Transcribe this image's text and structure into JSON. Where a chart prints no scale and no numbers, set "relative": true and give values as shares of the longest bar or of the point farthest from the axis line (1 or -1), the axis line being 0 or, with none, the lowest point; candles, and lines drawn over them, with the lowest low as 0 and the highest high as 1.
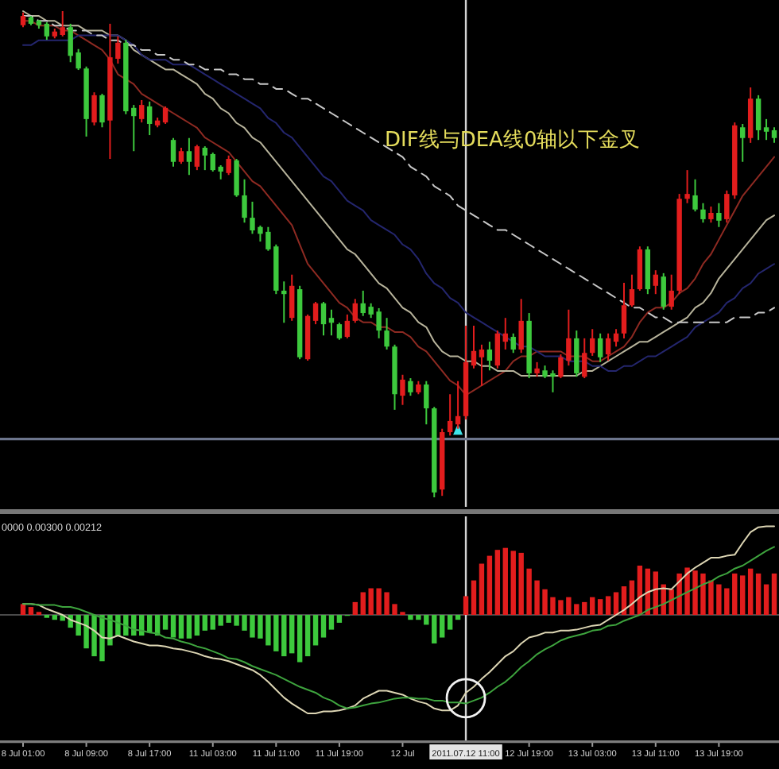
{
  "chart_data": [
    {
      "type": "candlestick",
      "relative": true,
      "tick_labels": false,
      "categories": [
        "8 Jul 01:00",
        null,
        null,
        null,
        null,
        null,
        null,
        null,
        "8 Jul 09:00",
        null,
        null,
        null,
        null,
        null,
        null,
        null,
        "8 Jul 17:00",
        null,
        null,
        null,
        null,
        null,
        null,
        null,
        "11 Jul 03:00",
        null,
        null,
        null,
        null,
        null,
        null,
        null,
        "11 Jul 11:00",
        null,
        null,
        null,
        null,
        null,
        null,
        null,
        "11 Jul 19:00",
        null,
        null,
        null,
        null,
        null,
        null,
        null,
        "12 Jul",
        null,
        null,
        null,
        null,
        null,
        null,
        null,
        "2011.07.12 11:00",
        null,
        null,
        null,
        null,
        null,
        null,
        null,
        "12 Jul 19:00",
        null,
        null,
        null,
        null,
        null,
        null,
        null,
        "13 Jul 03:00",
        null,
        null,
        null,
        null,
        null,
        null,
        null,
        "13 Jul 11:00",
        null,
        null,
        null,
        null,
        null,
        null,
        null,
        "13 Jul 19:00",
        null,
        null,
        null,
        null,
        null,
        null,
        null
      ],
      "ohlc": [
        [
          0.971,
          0.997,
          0.967,
          0.99
        ],
        [
          0.987,
          0.99,
          0.971,
          0.974
        ],
        [
          0.98,
          0.982,
          0.964,
          0.971
        ],
        [
          0.974,
          0.977,
          0.941,
          0.948
        ],
        [
          0.948,
          0.964,
          0.944,
          0.958
        ],
        [
          0.951,
          1.0,
          0.948,
          0.967
        ],
        [
          0.967,
          0.974,
          0.895,
          0.908
        ],
        [
          0.915,
          0.922,
          0.879,
          0.882
        ],
        [
          0.882,
          0.886,
          0.742,
          0.778
        ],
        [
          0.771,
          0.833,
          0.765,
          0.827
        ],
        [
          0.827,
          0.83,
          0.761,
          0.771
        ],
        [
          0.775,
          0.974,
          0.696,
          0.905
        ],
        [
          0.902,
          0.948,
          0.892,
          0.935
        ],
        [
          0.935,
          0.941,
          0.788,
          0.794
        ],
        [
          0.801,
          0.807,
          0.712,
          0.784
        ],
        [
          0.778,
          0.817,
          0.771,
          0.807
        ],
        [
          0.804,
          0.814,
          0.745,
          0.768
        ],
        [
          0.765,
          0.781,
          0.761,
          0.775
        ],
        [
          0.771,
          0.804,
          0.768,
          0.801
        ],
        [
          0.735,
          0.739,
          0.68,
          0.69
        ],
        [
          0.69,
          0.719,
          0.686,
          0.712
        ],
        [
          0.712,
          0.739,
          0.663,
          0.69
        ],
        [
          0.68,
          0.725,
          0.673,
          0.722
        ],
        [
          0.719,
          0.722,
          0.673,
          0.703
        ],
        [
          0.706,
          0.709,
          0.67,
          0.673
        ],
        [
          0.68,
          0.683,
          0.654,
          0.67
        ],
        [
          0.667,
          0.703,
          0.663,
          0.696
        ],
        [
          0.693,
          0.696,
          0.618,
          0.621
        ],
        [
          0.621,
          0.654,
          0.565,
          0.575
        ],
        [
          0.575,
          0.608,
          0.542,
          0.549
        ],
        [
          0.556,
          0.559,
          0.526,
          0.542
        ],
        [
          0.546,
          0.556,
          0.507,
          0.51
        ],
        [
          0.516,
          0.52,
          0.418,
          0.425
        ],
        [
          0.425,
          0.444,
          0.359,
          0.418
        ],
        [
          0.369,
          0.458,
          0.363,
          0.435
        ],
        [
          0.428,
          0.435,
          0.284,
          0.288
        ],
        [
          0.284,
          0.376,
          0.281,
          0.373
        ],
        [
          0.363,
          0.402,
          0.356,
          0.399
        ],
        [
          0.399,
          0.402,
          0.333,
          0.356
        ],
        [
          0.369,
          0.386,
          0.333,
          0.359
        ],
        [
          0.356,
          0.359,
          0.324,
          0.327
        ],
        [
          0.33,
          0.376,
          0.327,
          0.363
        ],
        [
          0.363,
          0.408,
          0.359,
          0.399
        ],
        [
          0.399,
          0.425,
          0.373,
          0.379
        ],
        [
          0.392,
          0.399,
          0.369,
          0.376
        ],
        [
          0.382,
          0.389,
          0.327,
          0.343
        ],
        [
          0.343,
          0.369,
          0.304,
          0.31
        ],
        [
          0.31,
          0.314,
          0.18,
          0.212
        ],
        [
          0.209,
          0.252,
          0.19,
          0.242
        ],
        [
          0.239,
          0.245,
          0.209,
          0.216
        ],
        [
          0.216,
          0.239,
          0.212,
          0.232
        ],
        [
          0.232,
          0.239,
          0.15,
          0.183
        ],
        [
          0.183,
          0.186,
          0.0,
          0.01
        ],
        [
          0.016,
          0.141,
          0.003,
          0.134
        ],
        [
          0.134,
          0.212,
          0.127,
          0.157
        ],
        [
          0.15,
          0.239,
          0.141,
          0.167
        ],
        [
          0.167,
          0.353,
          0.16,
          0.278
        ],
        [
          0.271,
          0.353,
          0.265,
          0.301
        ],
        [
          0.288,
          0.314,
          0.229,
          0.304
        ],
        [
          0.304,
          0.32,
          0.261,
          0.281
        ],
        [
          0.271,
          0.343,
          0.265,
          0.337
        ],
        [
          0.32,
          0.369,
          0.304,
          0.337
        ],
        [
          0.33,
          0.337,
          0.297,
          0.304
        ],
        [
          0.304,
          0.408,
          0.297,
          0.363
        ],
        [
          0.363,
          0.379,
          0.245,
          0.255
        ],
        [
          0.255,
          0.278,
          0.248,
          0.265
        ],
        [
          0.261,
          0.271,
          0.245,
          0.248
        ],
        [
          0.255,
          0.261,
          0.216,
          0.248
        ],
        [
          0.248,
          0.294,
          0.245,
          0.288
        ],
        [
          0.281,
          0.386,
          0.271,
          0.327
        ],
        [
          0.327,
          0.343,
          0.248,
          0.255
        ],
        [
          0.248,
          0.327,
          0.245,
          0.297
        ],
        [
          0.297,
          0.346,
          0.291,
          0.327
        ],
        [
          0.327,
          0.337,
          0.278,
          0.288
        ],
        [
          0.294,
          0.337,
          0.281,
          0.327
        ],
        [
          0.32,
          0.346,
          0.31,
          0.337
        ],
        [
          0.337,
          0.441,
          0.327,
          0.395
        ],
        [
          0.395,
          0.458,
          0.392,
          0.428
        ],
        [
          0.428,
          0.516,
          0.425,
          0.51
        ],
        [
          0.51,
          0.516,
          0.418,
          0.428
        ],
        [
          0.435,
          0.467,
          0.418,
          0.458
        ],
        [
          0.454,
          0.461,
          0.386,
          0.392
        ],
        [
          0.392,
          0.458,
          0.386,
          0.425
        ],
        [
          0.425,
          0.624,
          0.418,
          0.614
        ],
        [
          0.614,
          0.673,
          0.605,
          0.624
        ],
        [
          0.621,
          0.654,
          0.588,
          0.592
        ],
        [
          0.592,
          0.605,
          0.565,
          0.572
        ],
        [
          0.572,
          0.598,
          0.565,
          0.585
        ],
        [
          0.585,
          0.605,
          0.556,
          0.569
        ],
        [
          0.572,
          0.631,
          0.565,
          0.624
        ],
        [
          0.621,
          0.771,
          0.614,
          0.765
        ],
        [
          0.761,
          0.768,
          0.69,
          0.739
        ],
        [
          0.739,
          0.843,
          0.729,
          0.82
        ],
        [
          0.82,
          0.827,
          0.735,
          0.755
        ],
        [
          0.761,
          0.778,
          0.735,
          0.752
        ],
        [
          0.755,
          0.761,
          0.729,
          0.739
        ]
      ],
      "colors": [
        "#e21d1d",
        "#3dc93d",
        "#3dc93d",
        "#3dc93d",
        "#e21d1d",
        "#e21d1d",
        "#3dc93d",
        "#3dc93d",
        "#3dc93d",
        "#e21d1d",
        "#3dc93d",
        "#e21d1d",
        "#e21d1d",
        "#3dc93d",
        "#3dc93d",
        "#e21d1d",
        "#3dc93d",
        "#e21d1d",
        "#e21d1d",
        "#3dc93d",
        "#e21d1d",
        "#3dc93d",
        "#e21d1d",
        "#3dc93d",
        "#3dc93d",
        "#3dc93d",
        "#e21d1d",
        "#3dc93d",
        "#3dc93d",
        "#3dc93d",
        "#3dc93d",
        "#3dc93d",
        "#3dc93d",
        "#3dc93d",
        "#e21d1d",
        "#3dc93d",
        "#e21d1d",
        "#e21d1d",
        "#3dc93d",
        "#3dc93d",
        "#3dc93d",
        "#e21d1d",
        "#e21d1d",
        "#3dc93d",
        "#3dc93d",
        "#3dc93d",
        "#3dc93d",
        "#3dc93d",
        "#e21d1d",
        "#3dc93d",
        "#e21d1d",
        "#3dc93d",
        "#3dc93d",
        "#e21d1d",
        "#e21d1d",
        "#e21d1d",
        "#e21d1d",
        "#e21d1d",
        "#e21d1d",
        "#3dc93d",
        "#e21d1d",
        "#e21d1d",
        "#3dc93d",
        "#e21d1d",
        "#3dc93d",
        "#e21d1d",
        "#3dc93d",
        "#3dc93d",
        "#e21d1d",
        "#e21d1d",
        "#3dc93d",
        "#e21d1d",
        "#e21d1d",
        "#3dc93d",
        "#e21d1d",
        "#e21d1d",
        "#e21d1d",
        "#e21d1d",
        "#e21d1d",
        "#3dc93d",
        "#e21d1d",
        "#3dc93d",
        "#e21d1d",
        "#e21d1d",
        "#e21d1d",
        "#3dc93d",
        "#3dc93d",
        "#e21d1d",
        "#3dc93d",
        "#e21d1d",
        "#e21d1d",
        "#3dc93d",
        "#e21d1d",
        "#3dc93d",
        "#3dc93d",
        "#3dc93d"
      ],
      "series": [
        {
          "type": "line",
          "color": "#8e2a22",
          "values": [
            0.98,
            0.98,
            0.97,
            0.97,
            0.97,
            0.96,
            0.96,
            0.95,
            0.94,
            0.93,
            0.92,
            0.9,
            0.87,
            0.86,
            0.85,
            0.83,
            0.82,
            0.81,
            0.8,
            0.79,
            0.78,
            0.77,
            0.76,
            0.74,
            0.73,
            0.72,
            0.71,
            0.69,
            0.67,
            0.65,
            0.64,
            0.62,
            0.6,
            0.58,
            0.56,
            0.52,
            0.48,
            0.46,
            0.44,
            0.42,
            0.4,
            0.39,
            0.37,
            0.36,
            0.36,
            0.35,
            0.35,
            0.34,
            0.34,
            0.33,
            0.31,
            0.3,
            0.28,
            0.26,
            0.24,
            0.23,
            0.21,
            0.22,
            0.23,
            0.24,
            0.25,
            0.26,
            0.28,
            0.29,
            0.29,
            0.3,
            0.3,
            0.3,
            0.3,
            0.29,
            0.29,
            0.29,
            0.28,
            0.28,
            0.29,
            0.3,
            0.31,
            0.33,
            0.36,
            0.38,
            0.39,
            0.39,
            0.4,
            0.42,
            0.43,
            0.45,
            0.48,
            0.5,
            0.53,
            0.56,
            0.59,
            0.62,
            0.64,
            0.66,
            0.68,
            0.7
          ]
        },
        {
          "type": "line",
          "color": "#b8b49c",
          "values": [
            1.0,
            0.99,
            0.99,
            0.98,
            0.98,
            0.97,
            0.97,
            0.97,
            0.96,
            0.96,
            0.96,
            0.95,
            0.95,
            0.94,
            0.92,
            0.91,
            0.9,
            0.89,
            0.88,
            0.88,
            0.87,
            0.86,
            0.85,
            0.83,
            0.82,
            0.8,
            0.79,
            0.77,
            0.76,
            0.74,
            0.73,
            0.71,
            0.69,
            0.67,
            0.65,
            0.63,
            0.61,
            0.59,
            0.57,
            0.55,
            0.53,
            0.51,
            0.5,
            0.48,
            0.46,
            0.44,
            0.43,
            0.41,
            0.39,
            0.38,
            0.36,
            0.35,
            0.32,
            0.3,
            0.29,
            0.29,
            0.28,
            0.28,
            0.27,
            0.27,
            0.26,
            0.26,
            0.26,
            0.25,
            0.25,
            0.25,
            0.25,
            0.25,
            0.25,
            0.25,
            0.25,
            0.26,
            0.26,
            0.27,
            0.28,
            0.29,
            0.3,
            0.31,
            0.32,
            0.32,
            0.33,
            0.34,
            0.35,
            0.36,
            0.37,
            0.39,
            0.4,
            0.42,
            0.45,
            0.47,
            0.49,
            0.51,
            0.53,
            0.55,
            0.57,
            0.58
          ]
        },
        {
          "type": "line",
          "color": "#24266e",
          "values": [
            0.93,
            0.93,
            0.94,
            0.94,
            0.94,
            0.94,
            0.94,
            0.95,
            0.95,
            0.95,
            0.95,
            0.95,
            0.95,
            0.94,
            0.93,
            0.91,
            0.9,
            0.9,
            0.9,
            0.89,
            0.89,
            0.89,
            0.88,
            0.87,
            0.86,
            0.85,
            0.84,
            0.83,
            0.82,
            0.81,
            0.8,
            0.78,
            0.77,
            0.75,
            0.74,
            0.72,
            0.7,
            0.68,
            0.66,
            0.65,
            0.63,
            0.61,
            0.6,
            0.59,
            0.57,
            0.56,
            0.55,
            0.54,
            0.52,
            0.51,
            0.49,
            0.46,
            0.44,
            0.43,
            0.41,
            0.4,
            0.38,
            0.37,
            0.36,
            0.35,
            0.34,
            0.33,
            0.32,
            0.31,
            0.31,
            0.3,
            0.29,
            0.29,
            0.29,
            0.28,
            0.28,
            0.28,
            0.27,
            0.27,
            0.26,
            0.26,
            0.27,
            0.27,
            0.28,
            0.29,
            0.29,
            0.3,
            0.31,
            0.32,
            0.33,
            0.35,
            0.36,
            0.37,
            0.38,
            0.4,
            0.41,
            0.43,
            0.44,
            0.46,
            0.47,
            0.48
          ]
        },
        {
          "type": "line",
          "color": "#c8c8c8",
          "line_style": "dashed",
          "values": [
            0.99,
            0.99,
            0.98,
            0.98,
            0.97,
            0.97,
            0.96,
            0.96,
            0.96,
            0.95,
            0.95,
            0.94,
            0.94,
            0.93,
            0.93,
            0.92,
            0.92,
            0.91,
            0.91,
            0.9,
            0.9,
            0.89,
            0.89,
            0.88,
            0.88,
            0.88,
            0.87,
            0.87,
            0.86,
            0.86,
            0.85,
            0.85,
            0.84,
            0.84,
            0.83,
            0.82,
            0.82,
            0.81,
            0.8,
            0.79,
            0.78,
            0.77,
            0.76,
            0.75,
            0.74,
            0.73,
            0.72,
            0.71,
            0.7,
            0.68,
            0.67,
            0.66,
            0.64,
            0.63,
            0.62,
            0.6,
            0.59,
            0.58,
            0.57,
            0.56,
            0.55,
            0.55,
            0.54,
            0.53,
            0.52,
            0.51,
            0.5,
            0.49,
            0.48,
            0.47,
            0.46,
            0.45,
            0.44,
            0.43,
            0.42,
            0.41,
            0.4,
            0.39,
            0.39,
            0.38,
            0.37,
            0.37,
            0.36,
            0.36,
            0.36,
            0.36,
            0.36,
            0.36,
            0.36,
            0.36,
            0.37,
            0.37,
            0.37,
            0.38,
            0.38,
            0.39
          ]
        },
        {
          "type": "scatter",
          "color": "#3fe3e8",
          "marker": "triangle",
          "values": [
            null,
            null,
            null,
            null,
            null,
            null,
            null,
            null,
            null,
            null,
            null,
            null,
            null,
            null,
            null,
            null,
            null,
            null,
            null,
            null,
            null,
            null,
            null,
            null,
            null,
            null,
            null,
            null,
            null,
            null,
            null,
            null,
            null,
            null,
            null,
            null,
            null,
            null,
            null,
            null,
            null,
            null,
            null,
            null,
            null,
            null,
            null,
            null,
            null,
            null,
            null,
            null,
            null,
            null,
            null,
            0.14,
            null,
            null,
            null,
            null,
            null,
            null,
            null,
            null,
            null,
            null,
            null,
            null,
            null,
            null,
            null,
            null,
            null,
            null,
            null,
            null,
            null,
            null,
            null,
            null,
            null,
            null,
            null,
            null,
            null,
            null,
            null,
            null,
            null,
            null,
            null,
            null,
            null,
            null,
            null,
            null
          ]
        }
      ],
      "ref_lines": [
        {
          "axis": "x",
          "value": "2011.07.12 11:00",
          "color": "#d4d4d4"
        },
        {
          "axis": "y",
          "value": 0.12,
          "color": "#6c758c"
        }
      ],
      "annotations": [
        "DIF线与DEA线0轴以下金叉"
      ]
    },
    {
      "type": "bar",
      "relative": true,
      "tick_labels": "x",
      "categories": [
        "8 Jul 01:00",
        null,
        null,
        null,
        null,
        null,
        null,
        null,
        "8 Jul 09:00",
        null,
        null,
        null,
        null,
        null,
        null,
        null,
        "8 Jul 17:00",
        null,
        null,
        null,
        null,
        null,
        null,
        null,
        "11 Jul 03:00",
        null,
        null,
        null,
        null,
        null,
        null,
        null,
        "11 Jul 11:00",
        null,
        null,
        null,
        null,
        null,
        null,
        null,
        "11 Jul 19:00",
        null,
        null,
        null,
        null,
        null,
        null,
        null,
        "12 Jul",
        null,
        null,
        null,
        null,
        null,
        null,
        null,
        "2011.07.12 11:00",
        null,
        null,
        null,
        null,
        null,
        null,
        null,
        "12 Jul 19:00",
        null,
        null,
        null,
        null,
        null,
        null,
        null,
        "13 Jul 03:00",
        null,
        null,
        null,
        null,
        null,
        null,
        null,
        "13 Jul 11:00",
        null,
        null,
        null,
        null,
        null,
        null,
        null,
        "13 Jul 19:00",
        null,
        null,
        null,
        null,
        null,
        null,
        null
      ],
      "series": [
        {
          "type": "bar",
          "values": [
            0.11,
            0.08,
            0.03,
            -0.03,
            -0.05,
            -0.06,
            -0.13,
            -0.21,
            -0.34,
            -0.42,
            -0.47,
            -0.31,
            -0.21,
            -0.21,
            -0.21,
            -0.21,
            -0.18,
            -0.21,
            -0.15,
            -0.23,
            -0.24,
            -0.24,
            -0.21,
            -0.16,
            -0.15,
            -0.11,
            -0.08,
            -0.11,
            -0.16,
            -0.23,
            -0.24,
            -0.31,
            -0.37,
            -0.42,
            -0.39,
            -0.48,
            -0.42,
            -0.31,
            -0.23,
            -0.15,
            -0.08,
            -0.01,
            0.13,
            0.23,
            0.27,
            0.27,
            0.23,
            0.11,
            0.03,
            -0.05,
            -0.05,
            -0.1,
            -0.29,
            -0.23,
            -0.15,
            -0.05,
            0.19,
            0.35,
            0.52,
            0.6,
            0.66,
            0.68,
            0.65,
            0.63,
            0.47,
            0.35,
            0.26,
            0.18,
            0.15,
            0.18,
            0.11,
            0.13,
            0.18,
            0.16,
            0.19,
            0.23,
            0.29,
            0.35,
            0.5,
            0.47,
            0.44,
            0.31,
            0.26,
            0.42,
            0.48,
            0.45,
            0.42,
            0.35,
            0.31,
            0.27,
            0.42,
            0.4,
            0.47,
            0.42,
            0.31,
            0.42
          ],
          "colors": [
            "#e21d1d",
            "#e21d1d",
            "#e21d1d",
            "#3dc93d",
            "#3dc93d",
            "#3dc93d",
            "#3dc93d",
            "#3dc93d",
            "#3dc93d",
            "#3dc93d",
            "#3dc93d",
            "#3dc93d",
            "#3dc93d",
            "#3dc93d",
            "#3dc93d",
            "#3dc93d",
            "#3dc93d",
            "#3dc93d",
            "#3dc93d",
            "#3dc93d",
            "#3dc93d",
            "#3dc93d",
            "#3dc93d",
            "#3dc93d",
            "#3dc93d",
            "#3dc93d",
            "#3dc93d",
            "#3dc93d",
            "#3dc93d",
            "#3dc93d",
            "#3dc93d",
            "#3dc93d",
            "#3dc93d",
            "#3dc93d",
            "#3dc93d",
            "#3dc93d",
            "#3dc93d",
            "#3dc93d",
            "#3dc93d",
            "#3dc93d",
            "#3dc93d",
            "#3dc93d",
            "#e21d1d",
            "#e21d1d",
            "#e21d1d",
            "#e21d1d",
            "#e21d1d",
            "#e21d1d",
            "#e21d1d",
            "#3dc93d",
            "#3dc93d",
            "#3dc93d",
            "#3dc93d",
            "#3dc93d",
            "#3dc93d",
            "#3dc93d",
            "#e21d1d",
            "#e21d1d",
            "#e21d1d",
            "#e21d1d",
            "#e21d1d",
            "#e21d1d",
            "#e21d1d",
            "#e21d1d",
            "#e21d1d",
            "#e21d1d",
            "#e21d1d",
            "#e21d1d",
            "#e21d1d",
            "#e21d1d",
            "#e21d1d",
            "#e21d1d",
            "#e21d1d",
            "#e21d1d",
            "#e21d1d",
            "#e21d1d",
            "#e21d1d",
            "#e21d1d",
            "#e21d1d",
            "#e21d1d",
            "#e21d1d",
            "#e21d1d",
            "#e21d1d",
            "#e21d1d",
            "#e21d1d",
            "#e21d1d",
            "#e21d1d",
            "#e21d1d",
            "#e21d1d",
            "#e21d1d",
            "#e21d1d",
            "#e21d1d",
            "#e21d1d",
            "#e21d1d",
            "#e21d1d",
            "#e21d1d"
          ]
        },
        {
          "type": "line",
          "color": "#ddd6b4",
          "values": [
            0.11,
            0.11,
            0.1,
            0.06,
            0.03,
            0.0,
            -0.05,
            -0.08,
            -0.11,
            -0.16,
            -0.23,
            -0.24,
            -0.21,
            -0.24,
            -0.27,
            -0.29,
            -0.31,
            -0.31,
            -0.32,
            -0.34,
            -0.35,
            -0.37,
            -0.39,
            -0.42,
            -0.44,
            -0.45,
            -0.47,
            -0.5,
            -0.53,
            -0.56,
            -0.61,
            -0.68,
            -0.76,
            -0.84,
            -0.9,
            -0.95,
            -1.0,
            -1.0,
            -0.98,
            -0.98,
            -0.97,
            -0.95,
            -0.92,
            -0.85,
            -0.81,
            -0.77,
            -0.77,
            -0.79,
            -0.81,
            -0.85,
            -0.88,
            -0.9,
            -0.95,
            -0.97,
            -0.97,
            -0.92,
            -0.79,
            -0.73,
            -0.65,
            -0.58,
            -0.5,
            -0.42,
            -0.37,
            -0.29,
            -0.23,
            -0.21,
            -0.18,
            -0.18,
            -0.16,
            -0.16,
            -0.15,
            -0.13,
            -0.11,
            -0.1,
            -0.05,
            0.0,
            0.05,
            0.11,
            0.18,
            0.23,
            0.26,
            0.27,
            0.26,
            0.34,
            0.42,
            0.48,
            0.53,
            0.58,
            0.58,
            0.6,
            0.61,
            0.73,
            0.84,
            0.89,
            0.9,
            0.9
          ]
        },
        {
          "type": "line",
          "color": "#3ea43e",
          "values": [
            0.11,
            0.11,
            0.1,
            0.1,
            0.1,
            0.08,
            0.08,
            0.06,
            0.03,
            0.0,
            -0.03,
            -0.05,
            -0.08,
            -0.11,
            -0.15,
            -0.16,
            -0.18,
            -0.19,
            -0.23,
            -0.24,
            -0.27,
            -0.29,
            -0.32,
            -0.34,
            -0.37,
            -0.4,
            -0.44,
            -0.45,
            -0.48,
            -0.52,
            -0.55,
            -0.58,
            -0.61,
            -0.65,
            -0.69,
            -0.73,
            -0.76,
            -0.79,
            -0.84,
            -0.87,
            -0.92,
            -0.95,
            -0.94,
            -0.92,
            -0.9,
            -0.89,
            -0.87,
            -0.85,
            -0.84,
            -0.84,
            -0.85,
            -0.85,
            -0.87,
            -0.87,
            -0.89,
            -0.89,
            -0.9,
            -0.87,
            -0.84,
            -0.79,
            -0.73,
            -0.68,
            -0.61,
            -0.53,
            -0.47,
            -0.4,
            -0.35,
            -0.31,
            -0.26,
            -0.23,
            -0.21,
            -0.19,
            -0.16,
            -0.15,
            -0.11,
            -0.1,
            -0.06,
            -0.03,
            0.0,
            0.05,
            0.08,
            0.11,
            0.15,
            0.19,
            0.23,
            0.27,
            0.31,
            0.34,
            0.39,
            0.42,
            0.47,
            0.5,
            0.55,
            0.6,
            0.65,
            0.69
          ]
        }
      ],
      "ref_lines": [
        {
          "axis": "x",
          "value": "2011.07.12 11:00",
          "color": "#d4d4d4"
        }
      ],
      "annotations": [
        "0000 0.00300 0.00212"
      ]
    }
  ]
}
